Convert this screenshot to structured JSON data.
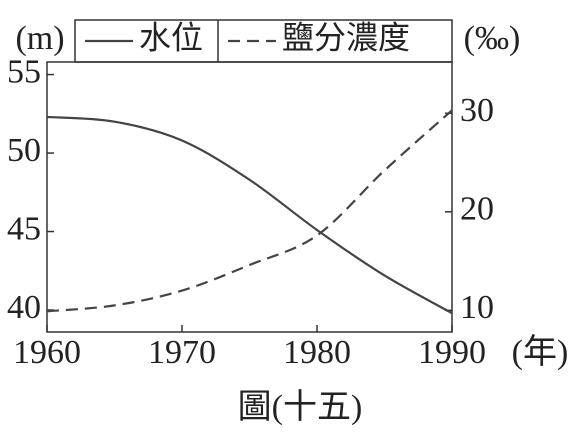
{
  "chart_data": {
    "type": "line",
    "title": "圖(十五)",
    "xlabel": "(年)",
    "ylabel": "(m)",
    "y2label": "(‰)",
    "x": [
      1960,
      1965,
      1970,
      1975,
      1980,
      1985,
      1990
    ],
    "series": [
      {
        "name": "水位",
        "color": "#444444",
        "linestyle": "solid",
        "axis": "y",
        "values": [
          52.3,
          52.0,
          50.8,
          48.3,
          45.1,
          42.2,
          39.8
        ]
      },
      {
        "name": "鹽分濃度",
        "color": "#444444",
        "linestyle": "dashed",
        "axis": "y2",
        "values": [
          9.9,
          10.5,
          12.0,
          14.6,
          17.6,
          24.2,
          30.3
        ]
      }
    ],
    "xlim": [
      1960,
      1990
    ],
    "xticks": [
      1960,
      1970,
      1980,
      1990
    ],
    "ylim": [
      38.6,
      55.8
    ],
    "yticks": [
      40,
      45,
      50,
      55
    ],
    "y2lim": [
      7.8,
      35.2
    ],
    "y2ticks": [
      10,
      20,
      30
    ],
    "grid": false
  }
}
